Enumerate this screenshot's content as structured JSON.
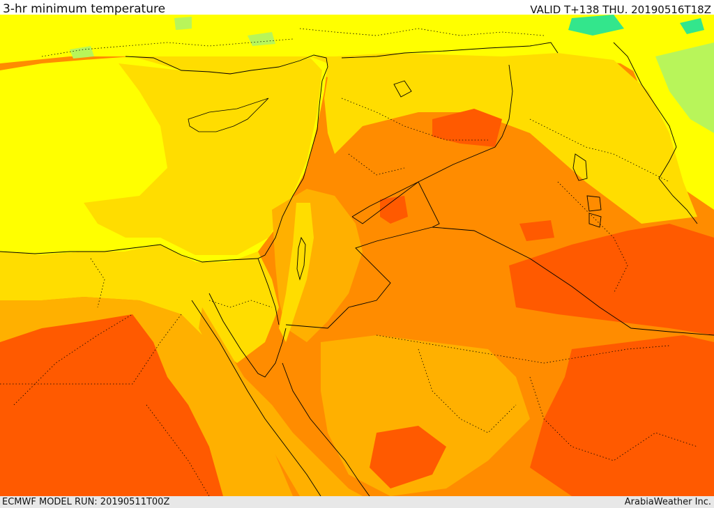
{
  "header": {
    "title": "3-hr minimum temperature",
    "valid": "VALID T+138 THU. 20190516T18Z"
  },
  "footer": {
    "model_run": "ECMWF MODEL RUN: 20190511T00Z",
    "credit": "ArabiaWeather Inc."
  },
  "map": {
    "variable": "3-hr minimum temperature",
    "colors": {
      "sea_yellow": "#ffff00",
      "light_orange_yellow": "#ffdd00",
      "amber": "#ffb000",
      "orange": "#ff8c00",
      "dark_orange": "#ff5a00",
      "light_green": "#b8f55a",
      "teal_green": "#33e68c",
      "coastline": "#000000"
    }
  }
}
